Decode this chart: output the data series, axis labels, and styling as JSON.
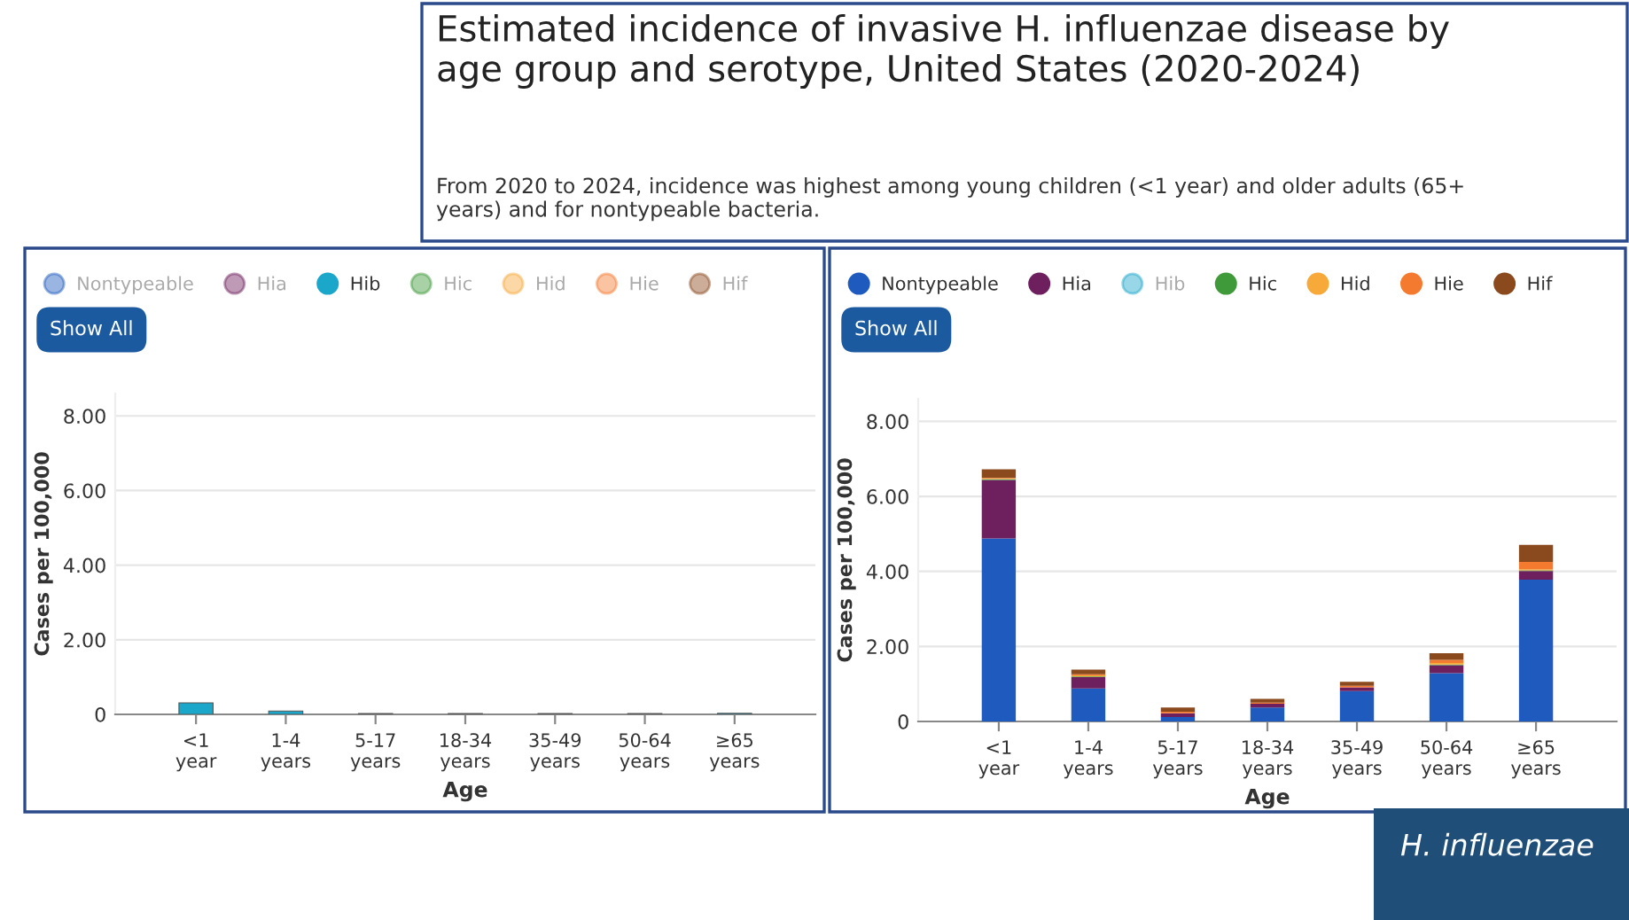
{
  "chart_data": [
    {
      "type": "bar",
      "stacked": true,
      "title": "Estimated incidence of invasive H. influenzae disease by age group and serotype, United States (2020-2024)",
      "subtitle": "From 2020 to 2024, incidence was highest among young children (<1 year) and older adults (65+ years) and for nontypeable bacteria.",
      "xlabel": "Age",
      "ylabel": "Cases per 100,000",
      "annotations": [
        "Show All"
      ],
      "legend": "top",
      "grid": "y",
      "categories": [
        "<1 year",
        "1-4 years",
        "5-17 years",
        "18-34 years",
        "35-49 years",
        "50-64 years",
        "≥65 years"
      ],
      "ylim": [
        0,
        8.6
      ],
      "yticks": [
        0,
        {
          "value": 2,
          "label": "2.00"
        },
        {
          "value": 4,
          "label": "4.00"
        },
        {
          "value": 6,
          "label": "6.00"
        },
        {
          "value": 8,
          "label": "8.00"
        }
      ],
      "series": [
        {
          "name": "Nontypeable",
          "color": "#1f5bbf",
          "values": [
            null,
            null,
            null,
            null,
            null,
            null,
            null
          ]
        },
        {
          "name": "Hia",
          "color": "#6e1f5e",
          "values": [
            null,
            null,
            null,
            null,
            null,
            null,
            null
          ]
        },
        {
          "name": "Hib",
          "color": "#1aa7c9",
          "values": [
            0.31,
            0.09,
            0.02,
            0.02,
            0.02,
            0.02,
            0.03
          ]
        },
        {
          "name": "Hic",
          "color": "#3f9a3a",
          "values": [
            null,
            null,
            null,
            null,
            null,
            null,
            null
          ]
        },
        {
          "name": "Hid",
          "color": "#f7a93a",
          "values": [
            null,
            null,
            null,
            null,
            null,
            null,
            null
          ]
        },
        {
          "name": "Hie",
          "color": "#f47a30",
          "values": [
            null,
            null,
            null,
            null,
            null,
            null,
            null
          ]
        },
        {
          "name": "Hif",
          "color": "#8b4a1e",
          "values": [
            null,
            null,
            null,
            null,
            null,
            null,
            null
          ]
        }
      ]
    },
    {
      "type": "bar",
      "stacked": true,
      "xlabel": "Age",
      "ylabel": "Cases per 100,000",
      "annotations": [
        "Show All",
        "H. influenzae"
      ],
      "legend": "top",
      "grid": "y",
      "categories": [
        "<1 year",
        "1-4 years",
        "5-17 years",
        "18-34 years",
        "35-49 years",
        "50-64 years",
        "≥65 years"
      ],
      "ylim": [
        0,
        8.6
      ],
      "yticks": [
        0,
        {
          "value": 2,
          "label": "2.00"
        },
        {
          "value": 4,
          "label": "4.00"
        },
        {
          "value": 6,
          "label": "6.00"
        },
        {
          "value": 8,
          "label": "8.00"
        }
      ],
      "series": [
        {
          "name": "Nontypeable",
          "color": "#1f5bbf",
          "values": [
            4.88,
            0.88,
            0.12,
            0.37,
            0.81,
            1.29,
            3.78
          ]
        },
        {
          "name": "Hia",
          "color": "#6e1f5e",
          "values": [
            1.56,
            0.3,
            0.1,
            0.1,
            0.1,
            0.21,
            0.23
          ]
        },
        {
          "name": "Hib",
          "color": "#1aa7c9",
          "values": [
            null,
            null,
            null,
            null,
            null,
            null,
            null
          ]
        },
        {
          "name": "Hic",
          "color": "#3f9a3a",
          "values": [
            0.02,
            0.02,
            0.0,
            0.0,
            0.0,
            0.02,
            0.02
          ]
        },
        {
          "name": "Hid",
          "color": "#f7a93a",
          "values": [
            0.02,
            0.03,
            0.0,
            0.0,
            0.0,
            0.04,
            0.03
          ]
        },
        {
          "name": "Hie",
          "color": "#f47a30",
          "values": [
            0.02,
            0.03,
            0.04,
            0.03,
            0.04,
            0.08,
            0.19
          ]
        },
        {
          "name": "Hif",
          "color": "#8b4a1e",
          "values": [
            0.22,
            0.12,
            0.11,
            0.1,
            0.11,
            0.18,
            0.46
          ]
        }
      ]
    }
  ]
}
